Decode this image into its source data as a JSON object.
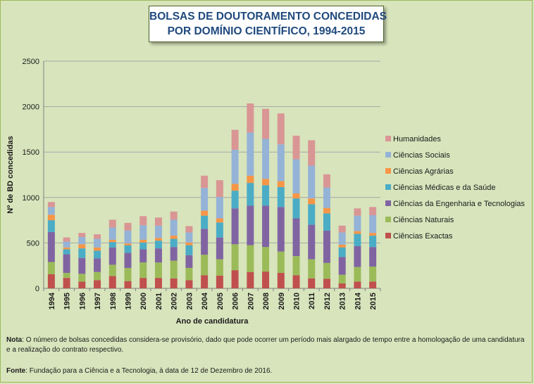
{
  "title_lines": [
    "BOLSAS DE DOUTORAMENTO CONCEDIDAS",
    "POR DOMÍNIO CIENTÍFICO, 1994-2015"
  ],
  "note": {
    "label": "Nota",
    "text": ": O número de bolsas concedidas considera-se provisório, dado que pode ocorrer um período mais alargado de tempo entre a homologação de uma candidatura e a realização do contrato respectivo."
  },
  "source": {
    "label": "Fonte",
    "text": ": Fundação para a Ciência e a Tecnologia, à data de 12 de Dezembro de 2016."
  },
  "chart_data": {
    "type": "bar",
    "stacked": true,
    "title": "BOLSAS DE DOUTORAMENTO CONCEDIDAS POR DOMÍNIO CIENTÍFICO, 1994-2015",
    "xlabel": "Ano de candidatura",
    "ylabel": "Nº de BD concedidas",
    "ylim": [
      0,
      2500
    ],
    "yticks": [
      0,
      500,
      1000,
      1500,
      2000,
      2500
    ],
    "grid": true,
    "legend_position": "right",
    "categories": [
      "1994",
      "1995",
      "1996",
      "1997",
      "1998",
      "1999",
      "2000",
      "2001",
      "2002",
      "2003",
      "2004",
      "2005",
      "2006",
      "2007",
      "2008",
      "2009",
      "2010",
      "2011",
      "2012",
      "2013",
      "2014",
      "2015"
    ],
    "series": [
      {
        "name": "Ciências Exactas",
        "color": "#c0504d",
        "values": [
          155,
          115,
          75,
          90,
          135,
          80,
          115,
          115,
          110,
          90,
          145,
          140,
          200,
          180,
          185,
          170,
          145,
          110,
          105,
          55,
          75,
          75
        ]
      },
      {
        "name": "Ciências Naturais",
        "color": "#9bbb59",
        "values": [
          135,
          55,
          85,
          90,
          125,
          145,
          170,
          170,
          195,
          135,
          225,
          180,
          285,
          295,
          270,
          235,
          210,
          210,
          175,
          95,
          160,
          165
        ]
      },
      {
        "name": "Ciências da Engenharia e Tecnologias",
        "color": "#8064a2",
        "values": [
          330,
          205,
          175,
          150,
          190,
          165,
          145,
          155,
          150,
          140,
          285,
          240,
          395,
          435,
          455,
          490,
          415,
          380,
          355,
          195,
          230,
          215
        ]
      },
      {
        "name": "Ciências Médicas e da Saúde",
        "color": "#4bacc6",
        "values": [
          130,
          55,
          105,
          85,
          60,
          85,
          75,
          85,
          90,
          110,
          145,
          165,
          195,
          250,
          225,
          220,
          220,
          225,
          190,
          105,
          135,
          125
        ]
      },
      {
        "name": "Ciências Agrárias",
        "color": "#f79646",
        "values": [
          60,
          20,
          45,
          35,
          25,
          20,
          30,
          30,
          35,
          30,
          55,
          45,
          75,
          80,
          70,
          65,
          55,
          65,
          60,
          30,
          30,
          30
        ]
      },
      {
        "name": "Ciências Sociais",
        "color": "#95b3d7",
        "values": [
          85,
          65,
          80,
          95,
          135,
          140,
          160,
          135,
          175,
          110,
          250,
          235,
          375,
          475,
          440,
          405,
          375,
          360,
          225,
          135,
          170,
          195
        ]
      },
      {
        "name": "Humanidades",
        "color": "#d99694",
        "values": [
          55,
          45,
          45,
          50,
          85,
          85,
          100,
          90,
          90,
          70,
          135,
          185,
          220,
          320,
          330,
          340,
          260,
          280,
          145,
          75,
          80,
          90
        ]
      }
    ]
  }
}
